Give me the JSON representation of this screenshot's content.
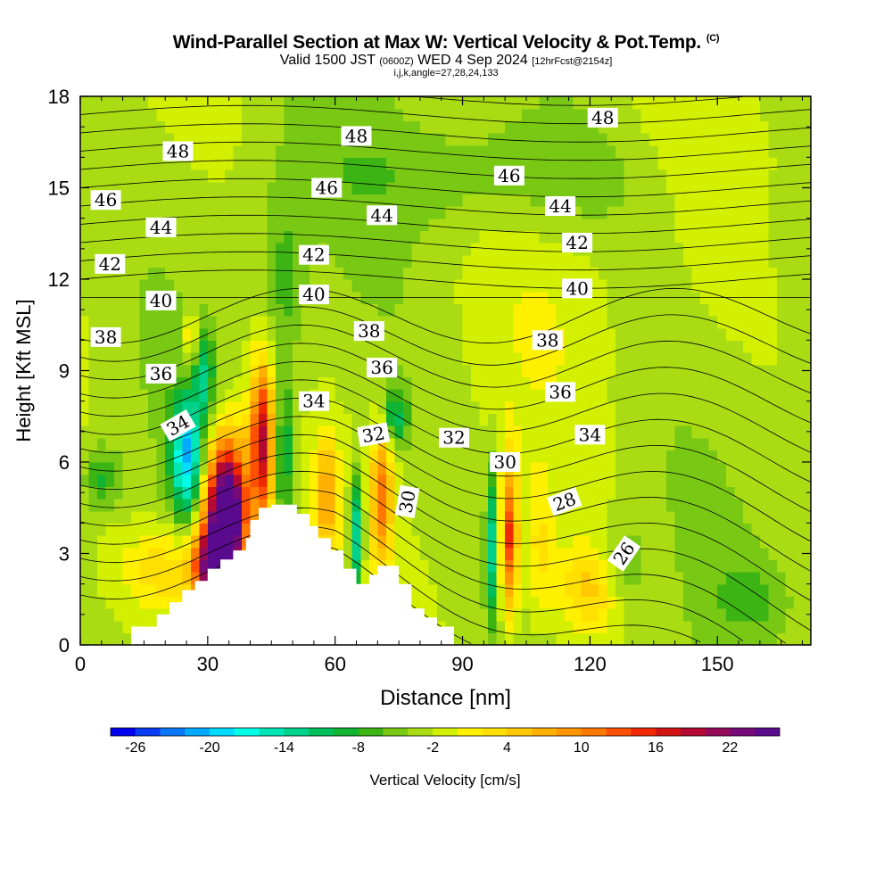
{
  "title": {
    "main": "Wind-Parallel Section at Max W: Vertical Velocity & Pot.Temp.",
    "copyright": "(C)",
    "sub_valid": "Valid 1500 JST",
    "sub_utc": "(0600Z)",
    "sub_date": "WED 4 Sep 2024",
    "sub_fcst": "[12hrFcst@2154z]",
    "sub_ijk": "i,j,k,angle=27,28,24,133"
  },
  "chart_data": {
    "type": "heatmap",
    "xlabel": "Distance [nm]",
    "ylabel": "Height [Kft MSL]",
    "xlim": [
      0,
      172
    ],
    "ylim": [
      0,
      18
    ],
    "x_ticks": [
      0,
      30,
      60,
      90,
      120,
      150
    ],
    "y_ticks": [
      0,
      3,
      6,
      9,
      12,
      15,
      18
    ],
    "colorbar": {
      "label": "Vertical Velocity [cm/s]",
      "tick_labels": [
        "-26",
        "-20",
        "-14",
        "-8",
        "-2",
        "4",
        "10",
        "16",
        "22"
      ],
      "colors": [
        "#0000f0",
        "#0a3cf5",
        "#0a78fa",
        "#00aaff",
        "#00dcff",
        "#00ffe6",
        "#00e6b4",
        "#00d28c",
        "#00be5a",
        "#10b432",
        "#3cb414",
        "#78c814",
        "#aadc14",
        "#d2f000",
        "#fff000",
        "#ffe000",
        "#ffc800",
        "#ffb000",
        "#ff9600",
        "#ff7800",
        "#ff5000",
        "#f02800",
        "#d21414",
        "#b40a32",
        "#960a5a",
        "#780a78",
        "#5a0a8c"
      ]
    },
    "terrain": [
      [
        0,
        0
      ],
      [
        12,
        0
      ],
      [
        12,
        0.6
      ],
      [
        18,
        0.6
      ],
      [
        18,
        1
      ],
      [
        21,
        1
      ],
      [
        21,
        1.4
      ],
      [
        24,
        1.4
      ],
      [
        24,
        1.8
      ],
      [
        27,
        1.8
      ],
      [
        27,
        2.1
      ],
      [
        30,
        2.1
      ],
      [
        30,
        2.5
      ],
      [
        33,
        2.5
      ],
      [
        33,
        2.8
      ],
      [
        36,
        2.8
      ],
      [
        36,
        3.1
      ],
      [
        39,
        3.1
      ],
      [
        39,
        3.5
      ],
      [
        40,
        3.5
      ],
      [
        40,
        4.1
      ],
      [
        42,
        4.1
      ],
      [
        42,
        4.5
      ],
      [
        45,
        4.5
      ],
      [
        45,
        4.6
      ],
      [
        51,
        4.6
      ],
      [
        51,
        4.3
      ],
      [
        54,
        4.3
      ],
      [
        54,
        3.9
      ],
      [
        56,
        3.9
      ],
      [
        56,
        3.5
      ],
      [
        59,
        3.5
      ],
      [
        59,
        3.1
      ],
      [
        62,
        3.1
      ],
      [
        62,
        2.5
      ],
      [
        65,
        2.5
      ],
      [
        65,
        2.0
      ],
      [
        68,
        2.0
      ],
      [
        68,
        2.3
      ],
      [
        70,
        2.3
      ],
      [
        70,
        2.6
      ],
      [
        75,
        2.6
      ],
      [
        75,
        2.0
      ],
      [
        78,
        2.0
      ],
      [
        78,
        1.2
      ],
      [
        81,
        1.2
      ],
      [
        81,
        0.9
      ],
      [
        84,
        0.9
      ],
      [
        84,
        0.6
      ],
      [
        88,
        0.6
      ],
      [
        88,
        0
      ],
      [
        172,
        0
      ]
    ],
    "velocity_blobs": [
      {
        "x": 35,
        "y": 4.3,
        "rx": 4,
        "ry": 2.3,
        "v": 24
      },
      {
        "x": 33,
        "y": 3.6,
        "rx": 5,
        "ry": 2.8,
        "v": 18
      },
      {
        "x": 30,
        "y": 2.5,
        "rx": 4,
        "ry": 1.4,
        "v": 14
      },
      {
        "x": 43,
        "y": 6.8,
        "rx": 2.5,
        "ry": 2.5,
        "v": 14
      },
      {
        "x": 42,
        "y": 6.0,
        "rx": 3.5,
        "ry": 3,
        "v": 8
      },
      {
        "x": 25,
        "y": 6.2,
        "rx": 3.5,
        "ry": 1.9,
        "v": -16
      },
      {
        "x": 29,
        "y": 8.8,
        "rx": 2.5,
        "ry": 1.5,
        "v": -8
      },
      {
        "x": 26,
        "y": 10.0,
        "rx": 1.5,
        "ry": 1,
        "v": 8
      },
      {
        "x": 48,
        "y": 6.2,
        "rx": 2,
        "ry": 2.5,
        "v": -8
      },
      {
        "x": 58,
        "y": 5.0,
        "rx": 2.5,
        "ry": 1.8,
        "v": 10
      },
      {
        "x": 65,
        "y": 3.6,
        "rx": 1.5,
        "ry": 2,
        "v": -12
      },
      {
        "x": 71,
        "y": 5.0,
        "rx": 2.5,
        "ry": 2.2,
        "v": 13
      },
      {
        "x": 74,
        "y": 7.5,
        "rx": 3,
        "ry": 1,
        "v": -8
      },
      {
        "x": 97,
        "y": 3.3,
        "rx": 1.5,
        "ry": 2.6,
        "v": -10
      },
      {
        "x": 101,
        "y": 3.5,
        "rx": 2,
        "ry": 2.5,
        "v": 16
      },
      {
        "x": 108,
        "y": 3.2,
        "rx": 3,
        "ry": 2.2,
        "v": 4
      },
      {
        "x": 120,
        "y": 1.8,
        "rx": 8,
        "ry": 1.4,
        "v": 6
      },
      {
        "x": 20,
        "y": 2.5,
        "rx": 10,
        "ry": 1.4,
        "v": 6
      },
      {
        "x": 5,
        "y": 5.5,
        "rx": 4,
        "ry": 1,
        "v": -6
      },
      {
        "x": 128,
        "y": 2.4,
        "rx": 5,
        "ry": 1.6,
        "v": -4
      },
      {
        "x": 158,
        "y": 1.6,
        "rx": 8,
        "ry": 1,
        "v": -3
      },
      {
        "x": 48,
        "y": 12,
        "rx": 5,
        "ry": 3,
        "v": -4
      },
      {
        "x": 115,
        "y": 11,
        "rx": 15,
        "ry": 3,
        "v": 1
      },
      {
        "x": 100,
        "y": 15.5,
        "rx": 40,
        "ry": 2,
        "v": -3
      },
      {
        "x": 150,
        "y": 16,
        "rx": 20,
        "ry": 1.5,
        "v": 1
      }
    ],
    "theta_labels": [
      {
        "text": "48",
        "x": 23,
        "y": 16.2,
        "rot": 0
      },
      {
        "text": "48",
        "x": 65,
        "y": 16.7,
        "rot": 0
      },
      {
        "text": "48",
        "x": 123,
        "y": 17.3,
        "rot": 0
      },
      {
        "text": "46",
        "x": 6,
        "y": 14.6,
        "rot": 0
      },
      {
        "text": "46",
        "x": 58,
        "y": 15.0,
        "rot": 0
      },
      {
        "text": "46",
        "x": 101,
        "y": 15.4,
        "rot": 0
      },
      {
        "text": "44",
        "x": 19,
        "y": 13.7,
        "rot": 0
      },
      {
        "text": "44",
        "x": 71,
        "y": 14.1,
        "rot": 0
      },
      {
        "text": "44",
        "x": 113,
        "y": 14.4,
        "rot": 0
      },
      {
        "text": "42",
        "x": 7,
        "y": 12.5,
        "rot": 0
      },
      {
        "text": "42",
        "x": 55,
        "y": 12.8,
        "rot": 0
      },
      {
        "text": "42",
        "x": 117,
        "y": 13.2,
        "rot": 0
      },
      {
        "text": "40",
        "x": 19,
        "y": 11.3,
        "rot": 0
      },
      {
        "text": "40",
        "x": 55,
        "y": 11.5,
        "rot": 0
      },
      {
        "text": "40",
        "x": 117,
        "y": 11.7,
        "rot": 0
      },
      {
        "text": "38",
        "x": 6,
        "y": 10.1,
        "rot": 0
      },
      {
        "text": "38",
        "x": 68,
        "y": 10.3,
        "rot": 0
      },
      {
        "text": "38",
        "x": 110,
        "y": 10.0,
        "rot": 0
      },
      {
        "text": "36",
        "x": 19,
        "y": 8.9,
        "rot": 0
      },
      {
        "text": "36",
        "x": 71,
        "y": 9.1,
        "rot": 0
      },
      {
        "text": "36",
        "x": 113,
        "y": 8.3,
        "rot": 0
      },
      {
        "text": "34",
        "x": 23,
        "y": 7.2,
        "rot": -30
      },
      {
        "text": "34",
        "x": 55,
        "y": 8.0,
        "rot": 0
      },
      {
        "text": "34",
        "x": 120,
        "y": 6.9,
        "rot": 0
      },
      {
        "text": "32",
        "x": 69,
        "y": 6.9,
        "rot": -10
      },
      {
        "text": "32",
        "x": 88,
        "y": 6.8,
        "rot": 0
      },
      {
        "text": "30",
        "x": 77,
        "y": 4.7,
        "rot": -80
      },
      {
        "text": "30",
        "x": 100,
        "y": 6.0,
        "rot": 0
      },
      {
        "text": "28",
        "x": 114,
        "y": 4.7,
        "rot": -20
      },
      {
        "text": "26",
        "x": 128,
        "y": 3.0,
        "rot": -55
      }
    ]
  }
}
